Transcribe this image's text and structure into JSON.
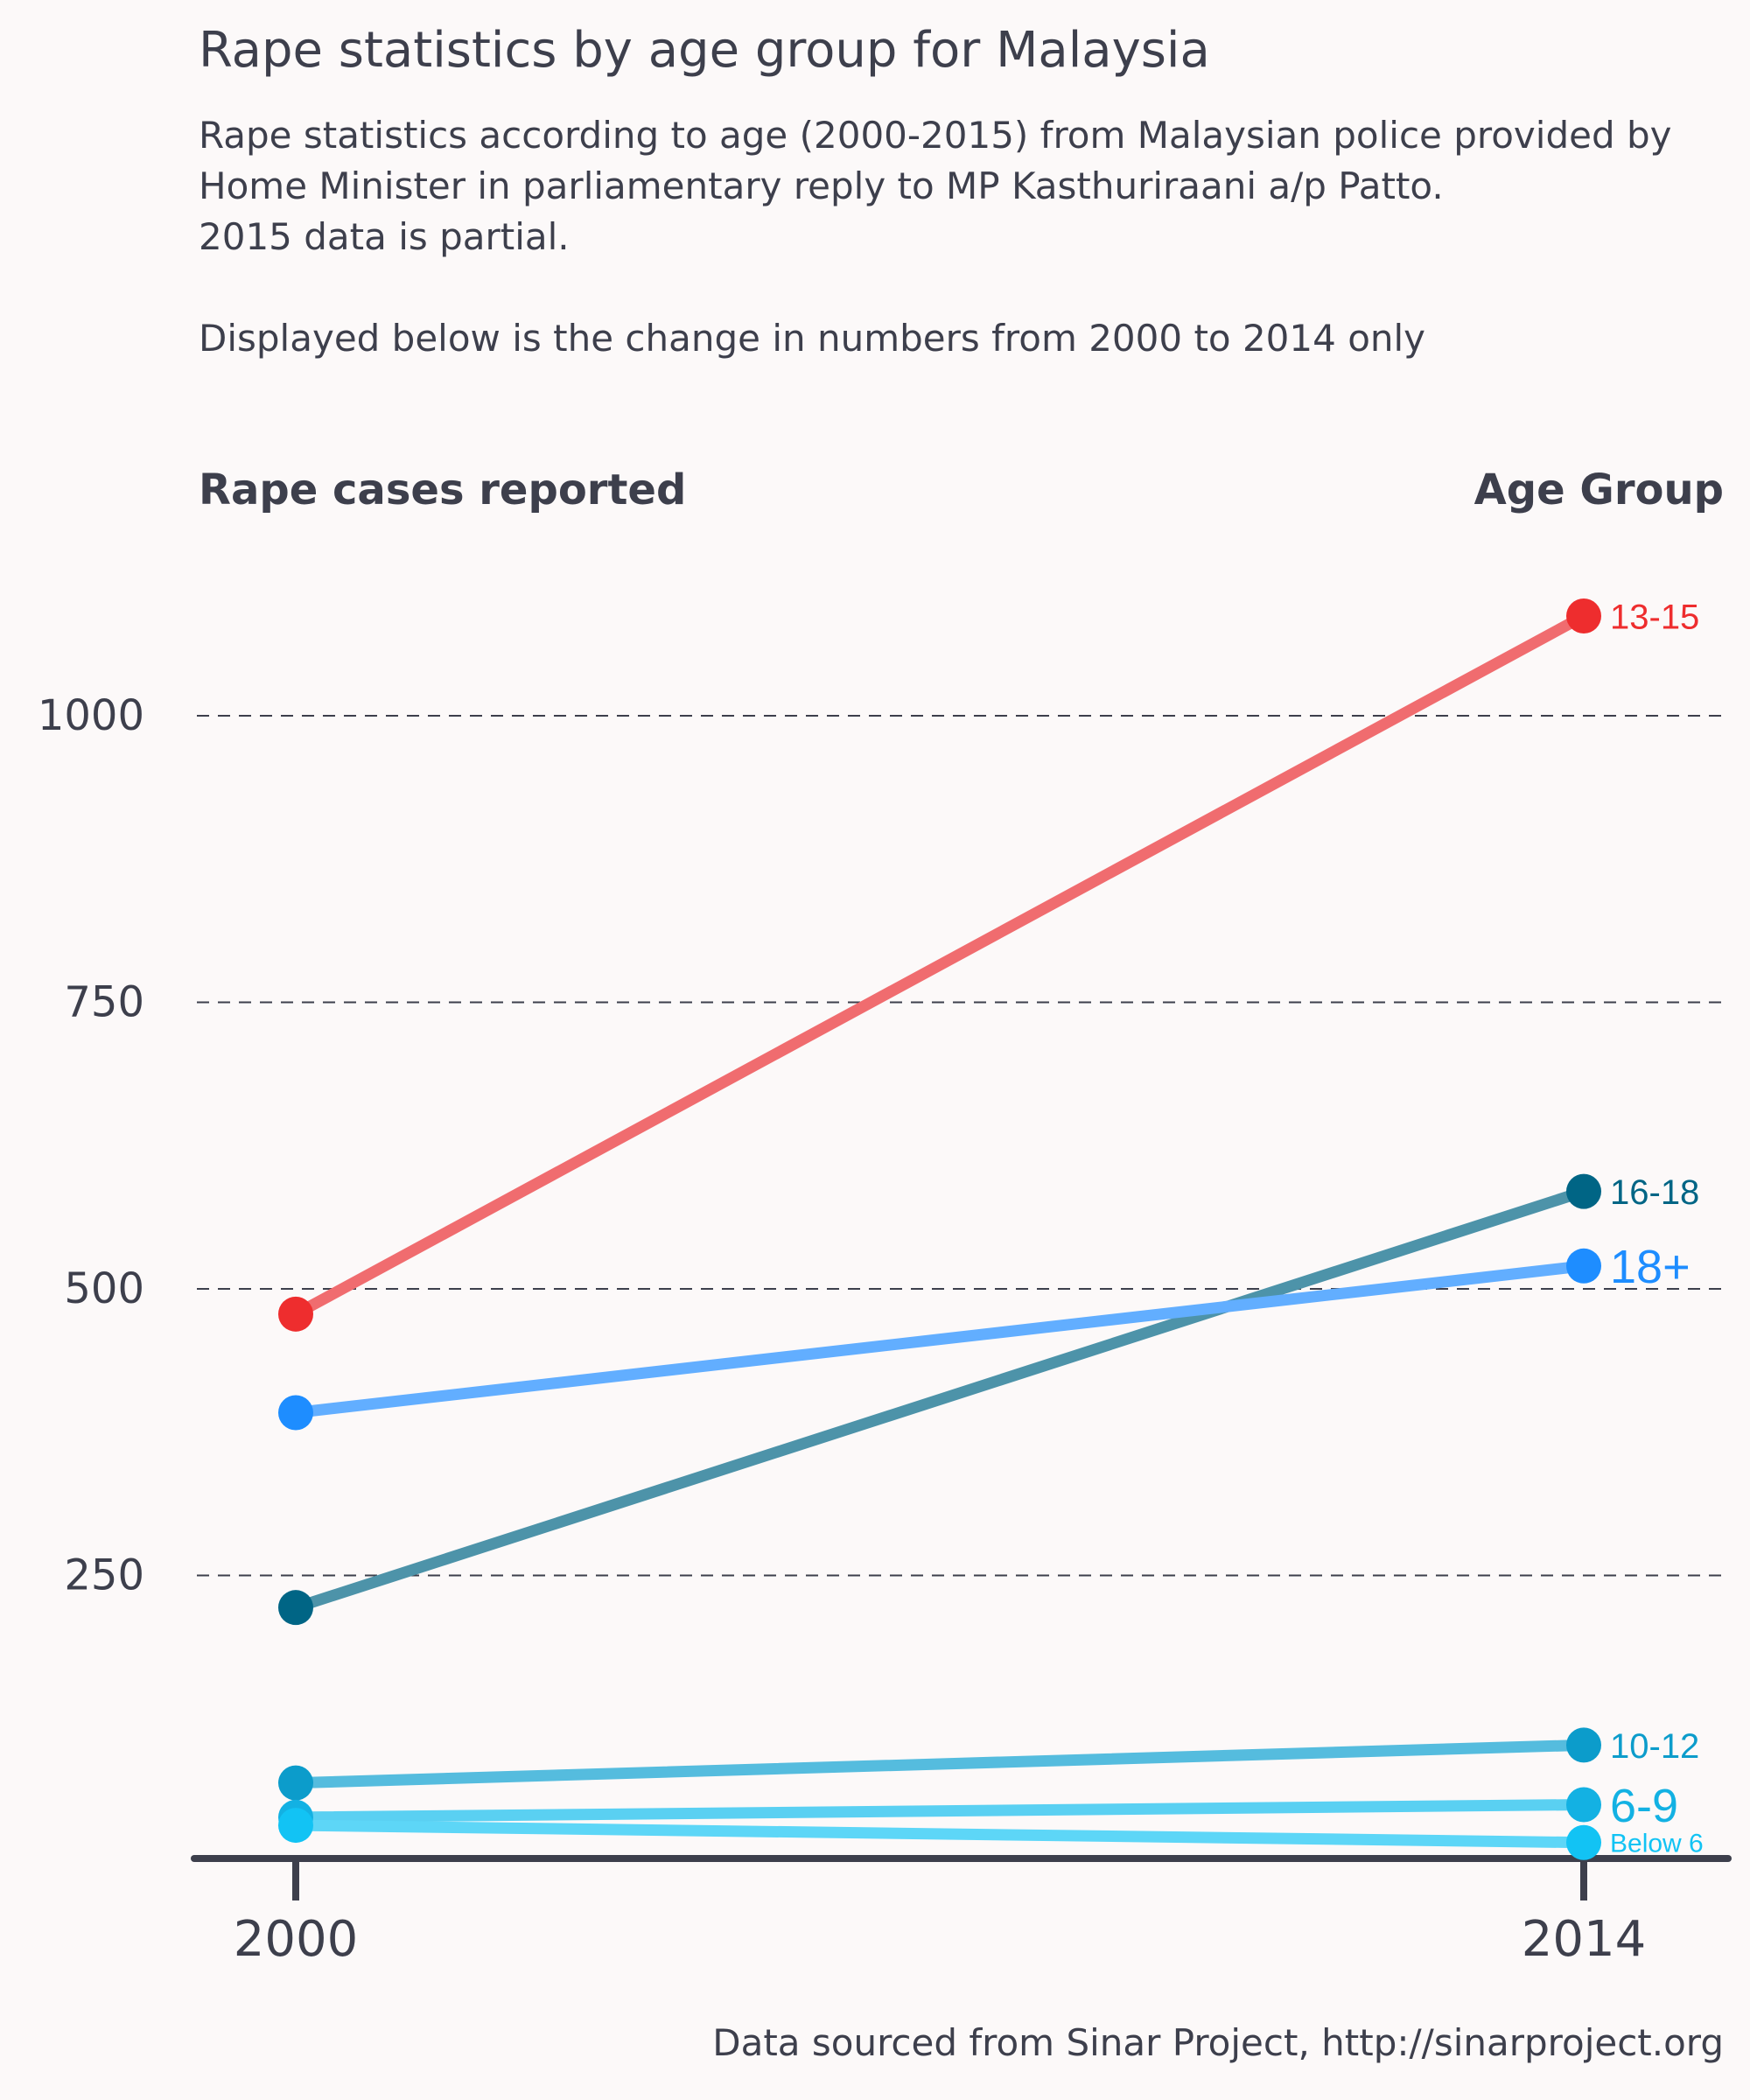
{
  "header": {
    "title": "Rape statistics by age group for Malaysia",
    "subtitle_lines": [
      "Rape statistics according to age (2000-2015) from Malaysian police provided by",
      "Home Minister in parliamentary reply to MP Kasthuriraani a/p Patto.",
      "2015 data is partial."
    ],
    "note": "Displayed below is the change in numbers from 2000 to 2014 only"
  },
  "axis_headers": {
    "left": "Rape cases reported",
    "right": "Age Group"
  },
  "footer": {
    "source": "Data sourced from Sinar Project, http://sinarproject.org"
  },
  "chart_data": {
    "type": "line",
    "x": [
      "2000",
      "2014"
    ],
    "ylabel": "Rape cases reported",
    "ylim": [
      0,
      1100
    ],
    "yticks": [
      250,
      500,
      750,
      1000
    ],
    "grid": true,
    "series": [
      {
        "name": "13-15",
        "values": [
          478,
          1087
        ],
        "color": "#ee2d2e",
        "line_color": "#f06c6f"
      },
      {
        "name": "16-18",
        "values": [
          222,
          585
        ],
        "color": "#006585",
        "line_color": "#4d93a9"
      },
      {
        "name": "18+",
        "values": [
          392,
          520
        ],
        "color": "#1e8dff",
        "line_color": "#62aeff"
      },
      {
        "name": "10-12",
        "values": [
          69,
          102
        ],
        "color": "#0c9ccb",
        "line_color": "#55bcde"
      },
      {
        "name": "6-9",
        "values": [
          39,
          50
        ],
        "color": "#13b1e3",
        "line_color": "#5ad0f2"
      },
      {
        "name": "Below 6",
        "values": [
          32,
          17
        ],
        "color": "#12c3f4",
        "line_color": "#5dd6f7"
      }
    ]
  }
}
